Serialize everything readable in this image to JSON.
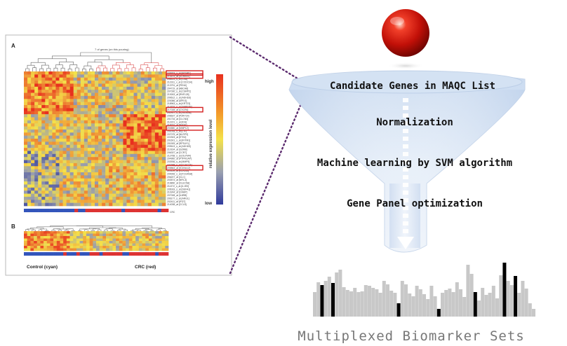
{
  "heatmap_figure": {
    "panel_a_label": "A",
    "panel_b_label": "B",
    "dendrogram_title": "7 of genes (on this pouring)",
    "legend_high": "high",
    "legend_low": "low",
    "legend_axis_label": "relative expression level",
    "group_control_label": "Control (cyan)",
    "group_crc_label": "CRC (red)",
    "bar_end_text": "CRC",
    "gene_labels": [
      "228303_x_at [BCNP1]",
      "213575_at [SORBS1]",
      "208451_s_at [C4A]",
      "212311_x_at [CCDC34]",
      "213791_at [PENK]",
      "204719_at [ABCA8]",
      "207030_s_at [CSRP2]",
      "219263_at [RNF128]",
      "209612_s_at [ADH1B]",
      "220086_at [SPEG]",
      "218963_s_at [KRT23]",
      "213152_s_at [SFRS2B]",
      "217028_at [CXCR4]",
      "202917_s_at [S100A8]",
      "206637_at [P2RY14]",
      "201734_at [CLCN3]",
      "212221_x_at [IDS]",
      "218231_at [NAGK]",
      "204580_at [MMP12]",
      "202018_s_at [LTF]",
      "207075_at [NLRP3]",
      "222303_at [ETS2]",
      "201601_x_at [IFITM1]",
      "201909_at [RPS4Y1]",
      "209613_s_at [ADH1B]",
      "210164_at [GZMB]",
      "206337_at [CCR7]",
      "212768_s_at [OLFM4]",
      "204960_at [PTPRCAP]",
      "203936_s_at [MMP9]",
      "221698_s_at [CLEC7A]",
      "205863_at [S100A12]",
      "210119_at [KCNJ15]",
      "204006_s_at [FCGR3A]",
      "206207_at [CLC]",
      "203574_at [NFIL3]",
      "219890_at [CLEC5A]",
      "211372_s_at [IL1R2]",
      "205033_s_at [DEFA1]",
      "210244_at [CAMP]",
      "207008_at [IL8RB]",
      "206177_s_at [ARG1]",
      "202411_at [IFI27]",
      "214038_at [CCL8]"
    ],
    "highlighted_gene_labels": [
      "228303_x_at [BCNP1]",
      "213575_at [SORBS1]",
      "217028_at [CXCR4]",
      "204580_at [MMP12]",
      "205863_at [S100A12]"
    ]
  },
  "funnel": {
    "stages": [
      "Candidate Genes in MAQC List",
      "Normalization",
      "Machine learning by SVM algorithm",
      "Gene Panel optimization"
    ]
  },
  "colors": {
    "sphere": "#cc1a0a",
    "heat_high": "#e8301e",
    "heat_mid": "#f4e24a",
    "heat_low": "#303a9c",
    "control_bar": "#3355bb",
    "crc_bar": "#dd3333",
    "highlight_box": "#d42020",
    "bar_gray": "#c8c8c8",
    "bar_black": "#000000"
  },
  "chart_data": {
    "type": "bar",
    "title": "",
    "caption": "Multiplexed Biomarker Sets",
    "highlighted_indices": [
      2,
      5,
      23,
      34,
      44,
      52,
      55
    ],
    "values": [
      35,
      49,
      45,
      51,
      57,
      48,
      63,
      67,
      42,
      38,
      36,
      41,
      35,
      36,
      45,
      44,
      41,
      39,
      34,
      51,
      46,
      37,
      34,
      19,
      51,
      46,
      33,
      29,
      44,
      39,
      32,
      25,
      44,
      29,
      11,
      34,
      38,
      40,
      35,
      49,
      39,
      28,
      74,
      61,
      35,
      23,
      41,
      31,
      34,
      44,
      26,
      59,
      77,
      51,
      45,
      58,
      34,
      51,
      40,
      19,
      11
    ]
  }
}
